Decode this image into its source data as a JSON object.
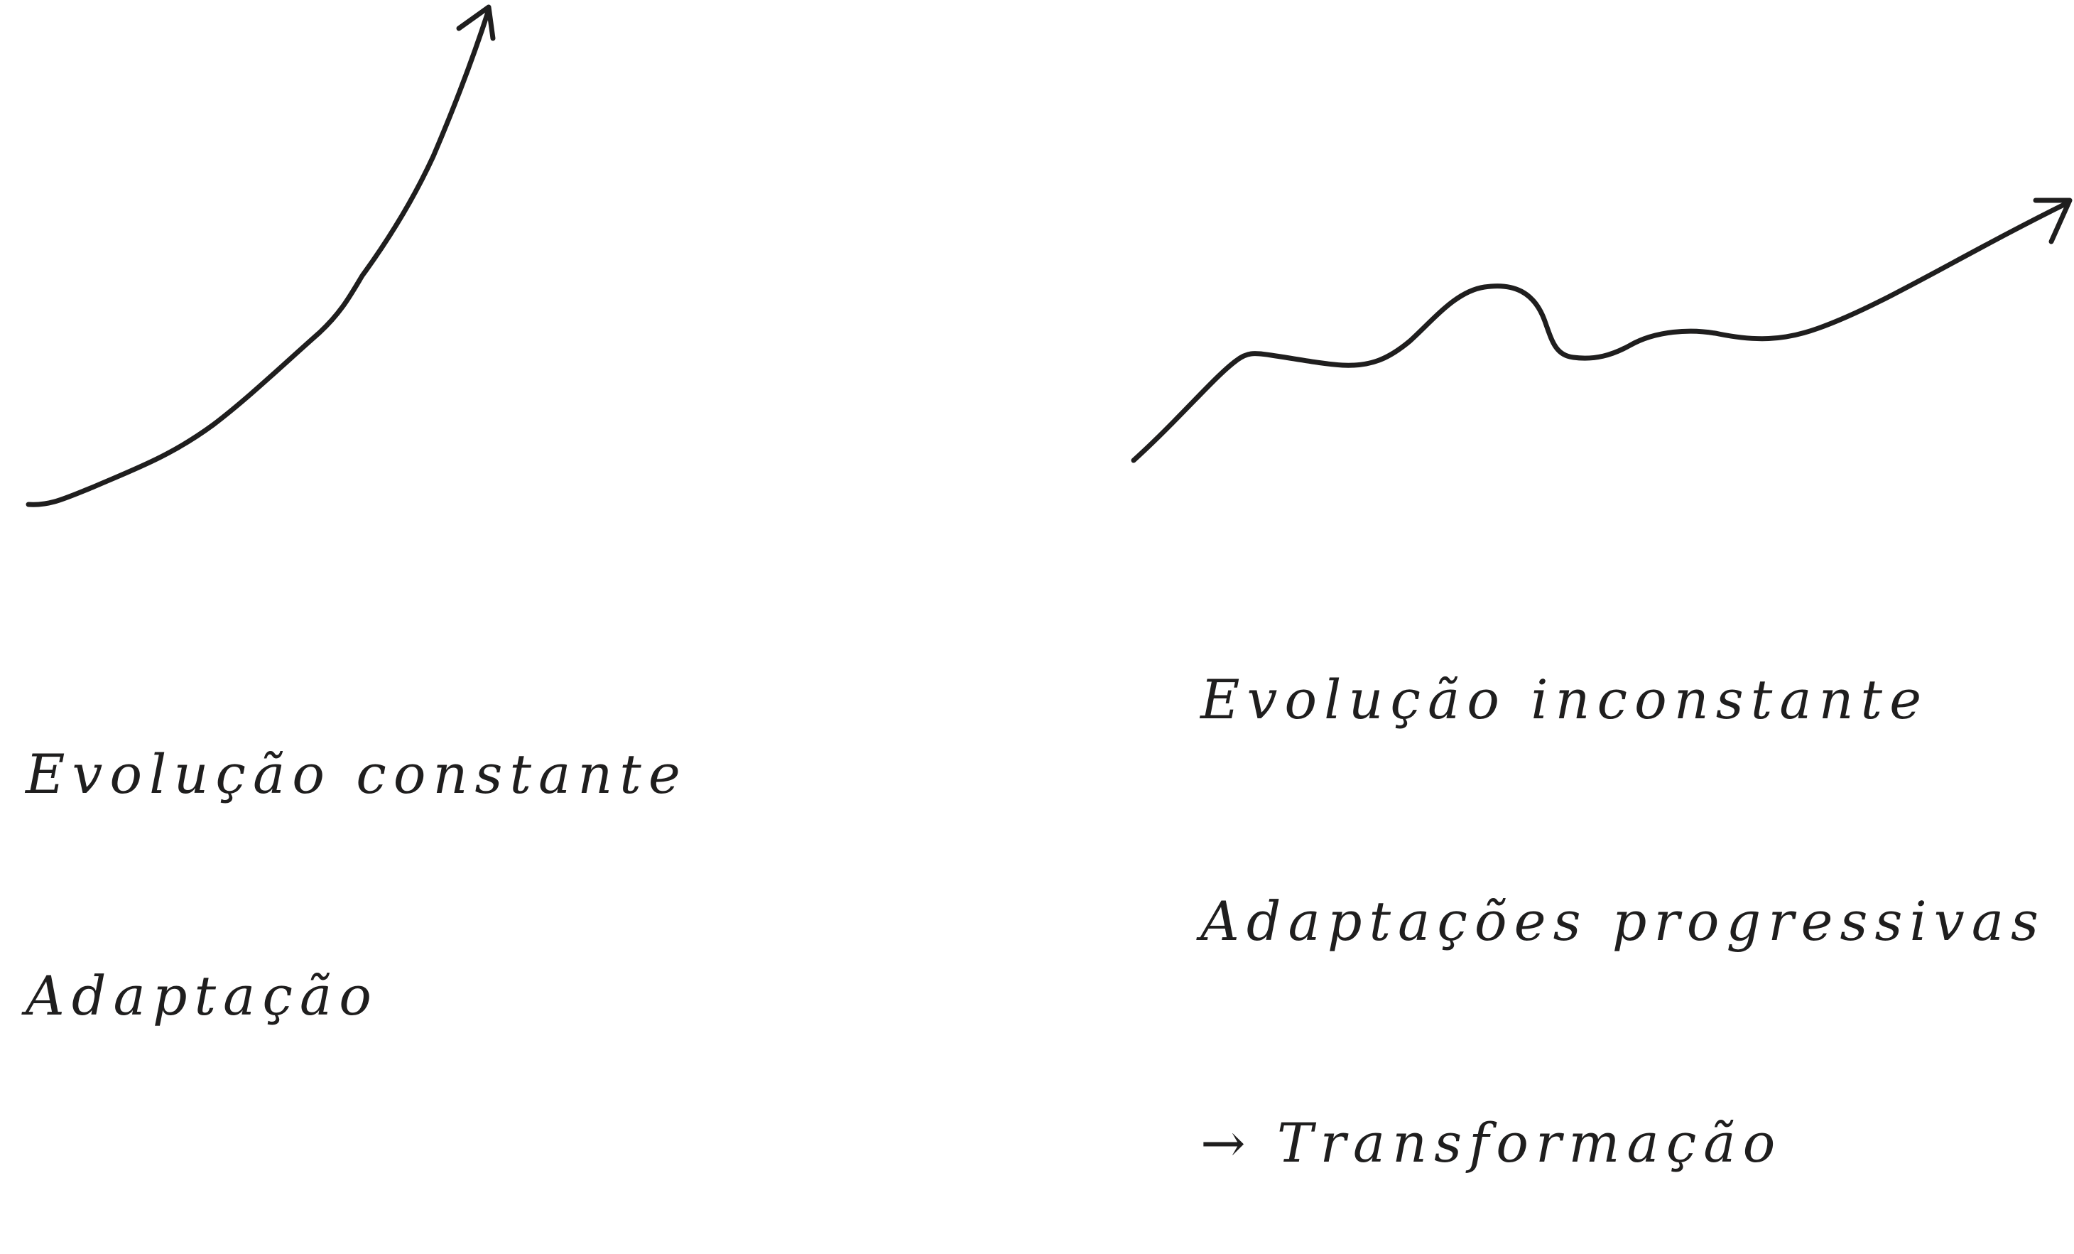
{
  "diagrams": [
    {
      "lines": [
        "Evolução constante",
        "Adaptação"
      ]
    },
    {
      "lines": [
        "Evolução inconstante",
        "Adaptações progressivas",
        "→ Transformação"
      ]
    }
  ],
  "colors": {
    "ink": "#1f1e1e",
    "background": "#ffffff"
  }
}
